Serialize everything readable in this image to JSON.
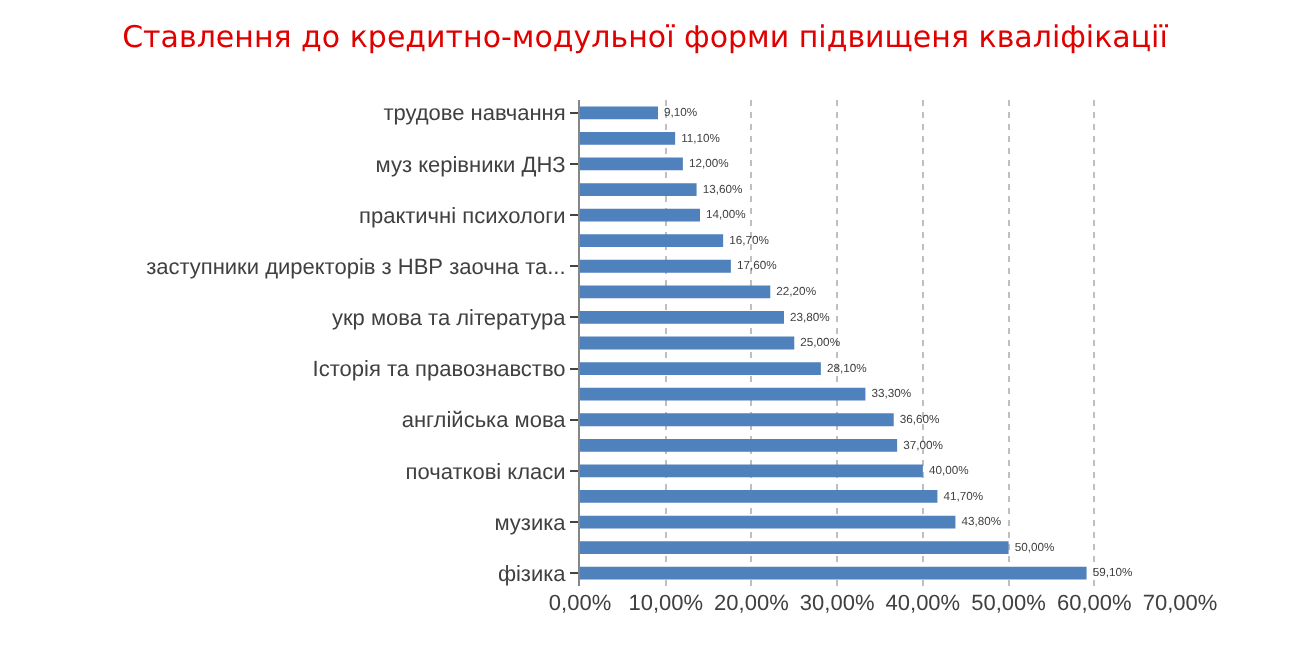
{
  "chart_data": {
    "type": "bar",
    "orientation": "horizontal",
    "title": "Ставлення до кредитно-модульної форми підвищеня кваліфікації",
    "categories": [
      "трудове навчання",
      null,
      "муз керівники ДНЗ",
      null,
      "практичні психологи",
      null,
      "заступники директорів з НВР заочна та...",
      null,
      "укр мова та література",
      null,
      "Історія та правознавство",
      null,
      "англійська мова",
      null,
      "початкові класи",
      null,
      "музика",
      null,
      "фізика"
    ],
    "values": [
      9.1,
      11.1,
      12.0,
      13.6,
      14.0,
      16.7,
      17.6,
      22.2,
      23.8,
      25.0,
      28.1,
      33.3,
      36.6,
      37.0,
      40.0,
      41.7,
      43.8,
      50.0,
      59.1
    ],
    "value_labels": [
      "9,10%",
      "11,10%",
      "12,00%",
      "13,60%",
      "14,00%",
      "16,70%",
      "17,60%",
      "22,20%",
      "23,80%",
      "25,00%",
      "28,10%",
      "33,30%",
      "36,60%",
      "37,00%",
      "40,00%",
      "41,70%",
      "43,80%",
      "50,00%",
      "59,10%"
    ],
    "color": "#4f81bd",
    "xlim": [
      0,
      70
    ],
    "xticks": [
      {
        "value": 0,
        "label": "0,00%"
      },
      {
        "value": 10,
        "label": "10,00%"
      },
      {
        "value": 20,
        "label": "20,00%"
      },
      {
        "value": 30,
        "label": "30,00%"
      },
      {
        "value": 40,
        "label": "40,00%"
      },
      {
        "value": 50,
        "label": "50,00%"
      },
      {
        "value": 60,
        "label": "60,00%"
      },
      {
        "value": 70,
        "label": "70,00%"
      }
    ],
    "grid": "x"
  }
}
